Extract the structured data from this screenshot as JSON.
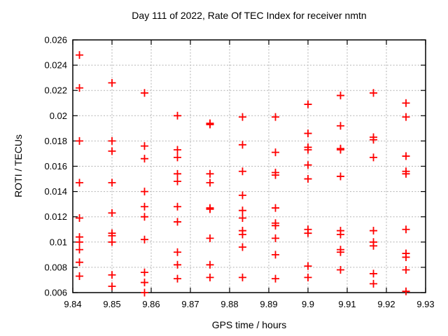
{
  "chart_data": {
    "type": "scatter",
    "title": "Day 111 of 2022, Rate Of TEC Index for receiver nmtn",
    "xlabel": "GPS time / hours",
    "ylabel": "ROTI / TECUs",
    "xlim": [
      9.84,
      9.93
    ],
    "ylim": [
      0.006,
      0.026
    ],
    "xticks": [
      9.84,
      9.85,
      9.86,
      9.87,
      9.88,
      9.89,
      9.9,
      9.91,
      9.92,
      9.93
    ],
    "xtick_labels": [
      "9.84",
      "9.85",
      "9.86",
      "9.87",
      "9.88",
      "9.89",
      "9.9",
      "9.91",
      "9.92",
      "9.93"
    ],
    "yticks": [
      0.006,
      0.008,
      0.01,
      0.012,
      0.014,
      0.016,
      0.018,
      0.02,
      0.022,
      0.024,
      0.026
    ],
    "ytick_labels": [
      "0.006",
      "0.008",
      "0.01",
      "0.012",
      "0.014",
      "0.016",
      "0.018",
      "0.02",
      "0.022",
      "0.024",
      "0.026"
    ],
    "grid": true,
    "legend": null,
    "marker": {
      "shape": "plus",
      "color": "#ff0000",
      "size": 11,
      "stroke_width": 1.8
    },
    "grid_color": "#b3b3b3",
    "border_color": "#000000",
    "points": [
      [
        9.8417,
        0.0248
      ],
      [
        9.8417,
        0.0222
      ],
      [
        9.8417,
        0.018
      ],
      [
        9.8417,
        0.0147
      ],
      [
        9.8417,
        0.0119
      ],
      [
        9.8417,
        0.0104
      ],
      [
        9.8417,
        0.01
      ],
      [
        9.8417,
        0.0094
      ],
      [
        9.8417,
        0.0084
      ],
      [
        9.8417,
        0.0073
      ],
      [
        9.85,
        0.0226
      ],
      [
        9.85,
        0.018
      ],
      [
        9.85,
        0.0172
      ],
      [
        9.85,
        0.0147
      ],
      [
        9.85,
        0.0123
      ],
      [
        9.85,
        0.0107
      ],
      [
        9.85,
        0.0105
      ],
      [
        9.85,
        0.01
      ],
      [
        9.85,
        0.0074
      ],
      [
        9.85,
        0.0065
      ],
      [
        9.8583,
        0.0218
      ],
      [
        9.8583,
        0.0176
      ],
      [
        9.8583,
        0.0166
      ],
      [
        9.8583,
        0.014
      ],
      [
        9.8583,
        0.0128
      ],
      [
        9.8583,
        0.012
      ],
      [
        9.8583,
        0.0102
      ],
      [
        9.8583,
        0.0076
      ],
      [
        9.8583,
        0.0068
      ],
      [
        9.8583,
        0.006
      ],
      [
        9.8667,
        0.02
      ],
      [
        9.8667,
        0.0173
      ],
      [
        9.8667,
        0.0167
      ],
      [
        9.8667,
        0.0154
      ],
      [
        9.8667,
        0.0148
      ],
      [
        9.8667,
        0.0128
      ],
      [
        9.8667,
        0.0116
      ],
      [
        9.8667,
        0.0092
      ],
      [
        9.8667,
        0.0082
      ],
      [
        9.8667,
        0.0071
      ],
      [
        9.875,
        0.0194
      ],
      [
        9.875,
        0.0193
      ],
      [
        9.875,
        0.0154
      ],
      [
        9.875,
        0.0147
      ],
      [
        9.875,
        0.0127
      ],
      [
        9.875,
        0.0126
      ],
      [
        9.875,
        0.0103
      ],
      [
        9.875,
        0.0082
      ],
      [
        9.875,
        0.0072
      ],
      [
        9.8833,
        0.0199
      ],
      [
        9.8833,
        0.0177
      ],
      [
        9.8833,
        0.0156
      ],
      [
        9.8833,
        0.0137
      ],
      [
        9.8833,
        0.0125
      ],
      [
        9.8833,
        0.0119
      ],
      [
        9.8833,
        0.0109
      ],
      [
        9.8833,
        0.0106
      ],
      [
        9.8833,
        0.0096
      ],
      [
        9.8833,
        0.0072
      ],
      [
        9.8917,
        0.0199
      ],
      [
        9.8917,
        0.0171
      ],
      [
        9.8917,
        0.0155
      ],
      [
        9.8917,
        0.0153
      ],
      [
        9.8917,
        0.0127
      ],
      [
        9.8917,
        0.0115
      ],
      [
        9.8917,
        0.0113
      ],
      [
        9.8917,
        0.0103
      ],
      [
        9.8917,
        0.009
      ],
      [
        9.8917,
        0.0071
      ],
      [
        9.9,
        0.0209
      ],
      [
        9.9,
        0.0186
      ],
      [
        9.9,
        0.0175
      ],
      [
        9.9,
        0.0173
      ],
      [
        9.9,
        0.0161
      ],
      [
        9.9,
        0.015
      ],
      [
        9.9,
        0.011
      ],
      [
        9.9,
        0.0107
      ],
      [
        9.9,
        0.0081
      ],
      [
        9.9,
        0.0072
      ],
      [
        9.9083,
        0.0216
      ],
      [
        9.9083,
        0.0192
      ],
      [
        9.9083,
        0.0174
      ],
      [
        9.9083,
        0.0173
      ],
      [
        9.9083,
        0.0152
      ],
      [
        9.9083,
        0.0109
      ],
      [
        9.9083,
        0.0106
      ],
      [
        9.9083,
        0.0094
      ],
      [
        9.9083,
        0.0092
      ],
      [
        9.9083,
        0.0078
      ],
      [
        9.9167,
        0.0218
      ],
      [
        9.9167,
        0.0183
      ],
      [
        9.9167,
        0.0181
      ],
      [
        9.9167,
        0.0167
      ],
      [
        9.9167,
        0.0109
      ],
      [
        9.9167,
        0.01
      ],
      [
        9.9167,
        0.0097
      ],
      [
        9.9167,
        0.0075
      ],
      [
        9.9167,
        0.0067
      ],
      [
        9.925,
        0.021
      ],
      [
        9.925,
        0.0199
      ],
      [
        9.925,
        0.0168
      ],
      [
        9.925,
        0.0156
      ],
      [
        9.925,
        0.0154
      ],
      [
        9.925,
        0.011
      ],
      [
        9.925,
        0.0091
      ],
      [
        9.925,
        0.0088
      ],
      [
        9.925,
        0.0078
      ],
      [
        9.925,
        0.0061
      ]
    ]
  }
}
